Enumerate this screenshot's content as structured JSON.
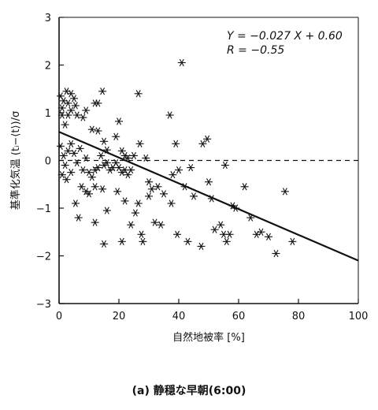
{
  "chart_data": {
    "type": "scatter",
    "xlabel": "自然地被率 [%]",
    "ylabel": "基準化気温 (tᵢ−⟨t⟩)/σ",
    "caption": "(a) 静穏な早朝(6:00)",
    "xlim": [
      0,
      100
    ],
    "ylim": [
      -3,
      3
    ],
    "xticks": [
      0,
      20,
      40,
      60,
      80,
      100
    ],
    "yticks": [
      -3,
      -2,
      -1,
      0,
      1,
      2,
      3
    ],
    "annotation": {
      "line1": "Y = −0.027 X + 0.60",
      "line2": "R = −0.55"
    },
    "regression": {
      "slope": -0.027,
      "intercept": 0.6,
      "x_start": 0,
      "x_end": 100
    },
    "zero_line": {
      "style": "dashed",
      "y": 0
    },
    "marker": "asterisk",
    "points": [
      [
        0.5,
        1.35
      ],
      [
        1.0,
        1.1
      ],
      [
        1.5,
        1.25
      ],
      [
        2.5,
        1.45
      ],
      [
        3.0,
        1.2
      ],
      [
        4.0,
        1.4
      ],
      [
        5.0,
        1.3
      ],
      [
        5.5,
        1.15
      ],
      [
        1.0,
        0.95
      ],
      [
        2.0,
        0.75
      ],
      [
        3.0,
        0.95
      ],
      [
        4.0,
        1.05
      ],
      [
        6.0,
        0.95
      ],
      [
        8.0,
        0.9
      ],
      [
        9.0,
        1.05
      ],
      [
        12.0,
        1.2
      ],
      [
        13.0,
        1.2
      ],
      [
        14.5,
        1.45
      ],
      [
        11.0,
        0.65
      ],
      [
        13.0,
        0.62
      ],
      [
        15.0,
        0.4
      ],
      [
        16.0,
        0.22
      ],
      [
        20.0,
        0.82
      ],
      [
        19.0,
        0.5
      ],
      [
        21.0,
        0.2
      ],
      [
        22.0,
        0.1
      ],
      [
        23.0,
        0.05
      ],
      [
        25.0,
        0.1
      ],
      [
        26.5,
        1.4
      ],
      [
        27.0,
        0.35
      ],
      [
        29.0,
        0.05
      ],
      [
        30.0,
        -0.45
      ],
      [
        31.0,
        -0.6
      ],
      [
        33.0,
        -0.55
      ],
      [
        35.0,
        -0.7
      ],
      [
        37.0,
        0.95
      ],
      [
        38.0,
        -0.3
      ],
      [
        39.0,
        0.35
      ],
      [
        40.0,
        -0.2
      ],
      [
        41.0,
        2.05
      ],
      [
        42.0,
        -0.55
      ],
      [
        44.0,
        -0.15
      ],
      [
        45.0,
        -0.75
      ],
      [
        48.0,
        0.35
      ],
      [
        49.5,
        0.45
      ],
      [
        50.0,
        -0.45
      ],
      [
        51.0,
        -0.8
      ],
      [
        54.0,
        -1.35
      ],
      [
        55.5,
        -0.1
      ],
      [
        57.0,
        -1.55
      ],
      [
        58.0,
        -0.95
      ],
      [
        59.0,
        -1.0
      ],
      [
        62.0,
        -0.55
      ],
      [
        64.0,
        -1.2
      ],
      [
        66.0,
        -1.55
      ],
      [
        67.5,
        -1.5
      ],
      [
        70.0,
        -1.6
      ],
      [
        72.5,
        -1.95
      ],
      [
        75.5,
        -0.65
      ],
      [
        78.0,
        -1.7
      ],
      [
        0.5,
        0.3
      ],
      [
        1.5,
        0.1
      ],
      [
        2.0,
        -0.1
      ],
      [
        3.0,
        0.2
      ],
      [
        4.0,
        0.35
      ],
      [
        5.0,
        0.15
      ],
      [
        6.0,
        -0.05
      ],
      [
        7.0,
        0.25
      ],
      [
        8.0,
        -0.2
      ],
      [
        9.0,
        0.05
      ],
      [
        10.0,
        -0.25
      ],
      [
        11.0,
        -0.35
      ],
      [
        12.0,
        -0.2
      ],
      [
        13.0,
        -0.15
      ],
      [
        14.0,
        0.1
      ],
      [
        15.0,
        -0.1
      ],
      [
        16.0,
        -0.05
      ],
      [
        17.0,
        -0.2
      ],
      [
        18.0,
        -0.15
      ],
      [
        19.0,
        -0.05
      ],
      [
        20.0,
        -0.15
      ],
      [
        21.0,
        -0.25
      ],
      [
        22.0,
        -0.2
      ],
      [
        23.0,
        -0.3
      ],
      [
        24.0,
        -0.2
      ],
      [
        1.0,
        -0.3
      ],
      [
        2.5,
        -0.4
      ],
      [
        4.0,
        -0.25
      ],
      [
        5.5,
        -0.9
      ],
      [
        6.5,
        -1.2
      ],
      [
        7.5,
        -0.55
      ],
      [
        9.0,
        -0.65
      ],
      [
        10.0,
        -0.7
      ],
      [
        12.0,
        -0.55
      ],
      [
        14.5,
        -0.6
      ],
      [
        16.0,
        -1.05
      ],
      [
        19.5,
        -0.65
      ],
      [
        22.0,
        -0.85
      ],
      [
        24.0,
        -1.35
      ],
      [
        25.5,
        -1.1
      ],
      [
        26.5,
        -0.9
      ],
      [
        27.5,
        -1.55
      ],
      [
        30.0,
        -0.75
      ],
      [
        32.0,
        -1.3
      ],
      [
        34.0,
        -1.35
      ],
      [
        37.5,
        -0.9
      ],
      [
        39.5,
        -1.55
      ],
      [
        43.0,
        -1.7
      ],
      [
        47.5,
        -1.8
      ],
      [
        52.0,
        -1.45
      ],
      [
        55.0,
        -1.55
      ],
      [
        56.0,
        -1.7
      ],
      [
        15.0,
        -1.75
      ],
      [
        21.0,
        -1.7
      ],
      [
        28.0,
        -1.7
      ],
      [
        12.0,
        -1.3
      ]
    ]
  }
}
